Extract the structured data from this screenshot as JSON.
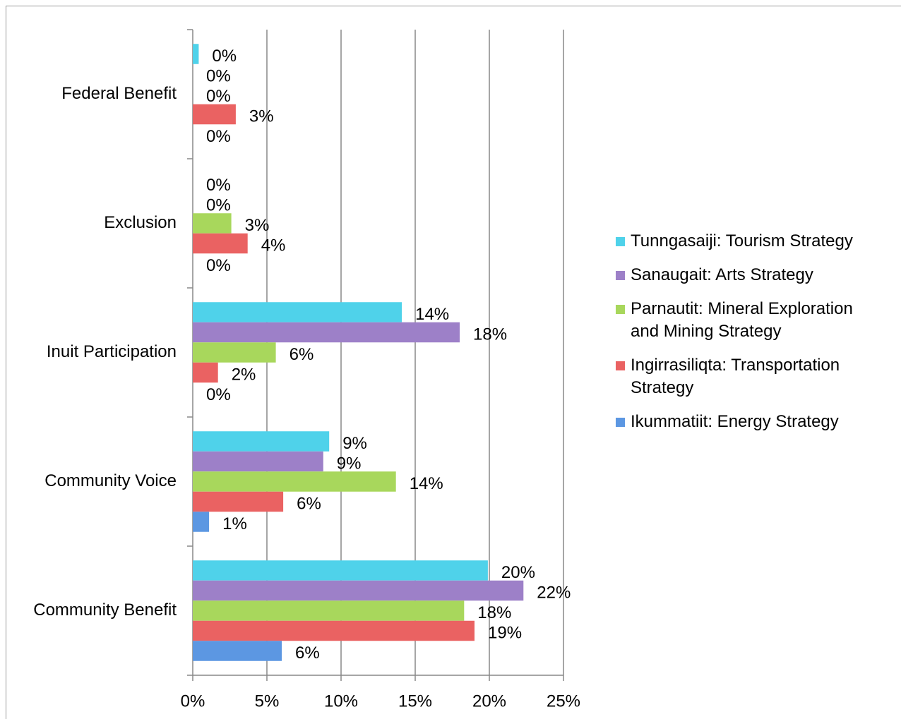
{
  "chart_data": {
    "type": "hbar",
    "categories": [
      "Community Benefit",
      "Community Voice",
      "Inuit Participation",
      "Exclusion",
      "Federal Benefit"
    ],
    "series": [
      {
        "name": "Tunngasaiji: Tourism Strategy",
        "color": "#4fd2ea",
        "values": [
          19.9,
          9.2,
          14.1,
          0,
          0.4
        ],
        "value_labels": [
          "20%",
          "9%",
          "14%",
          "0%",
          "0%"
        ]
      },
      {
        "name": "Sanaugait: Arts Strategy",
        "color": "#9d80c8",
        "values": [
          22.3,
          8.8,
          18.0,
          0,
          0
        ],
        "value_labels": [
          "22%",
          "9%",
          "18%",
          "0%",
          "0%"
        ]
      },
      {
        "name": "Parnautit: Mineral Exploration and Mining Strategy",
        "color": "#a8d75c",
        "values": [
          18.3,
          13.7,
          5.6,
          2.6,
          0
        ],
        "value_labels": [
          "18%",
          "14%",
          "6%",
          "3%",
          "0%"
        ]
      },
      {
        "name": "Ingirrasiliqta: Transportation Strategy",
        "color": "#ea6262",
        "values": [
          19.0,
          6.1,
          1.7,
          3.7,
          2.9
        ],
        "value_labels": [
          "19%",
          "6%",
          "2%",
          "4%",
          "3%"
        ]
      },
      {
        "name": "Ikummatiit: Energy Strategy",
        "color": "#5c97e2",
        "values": [
          6.0,
          1.1,
          0,
          0,
          0
        ],
        "value_labels": [
          "6%",
          "1%",
          "0%",
          "0%",
          "0%"
        ]
      }
    ],
    "xlim": [
      0,
      25
    ],
    "xticks": [
      {
        "value": 0,
        "label": "0%"
      },
      {
        "value": 5,
        "label": "5%"
      },
      {
        "value": 10,
        "label": "10%"
      },
      {
        "value": 15,
        "label": "15%"
      },
      {
        "value": 20,
        "label": "20%"
      },
      {
        "value": 25,
        "label": "25%"
      }
    ],
    "grid": true,
    "legend": "right"
  }
}
